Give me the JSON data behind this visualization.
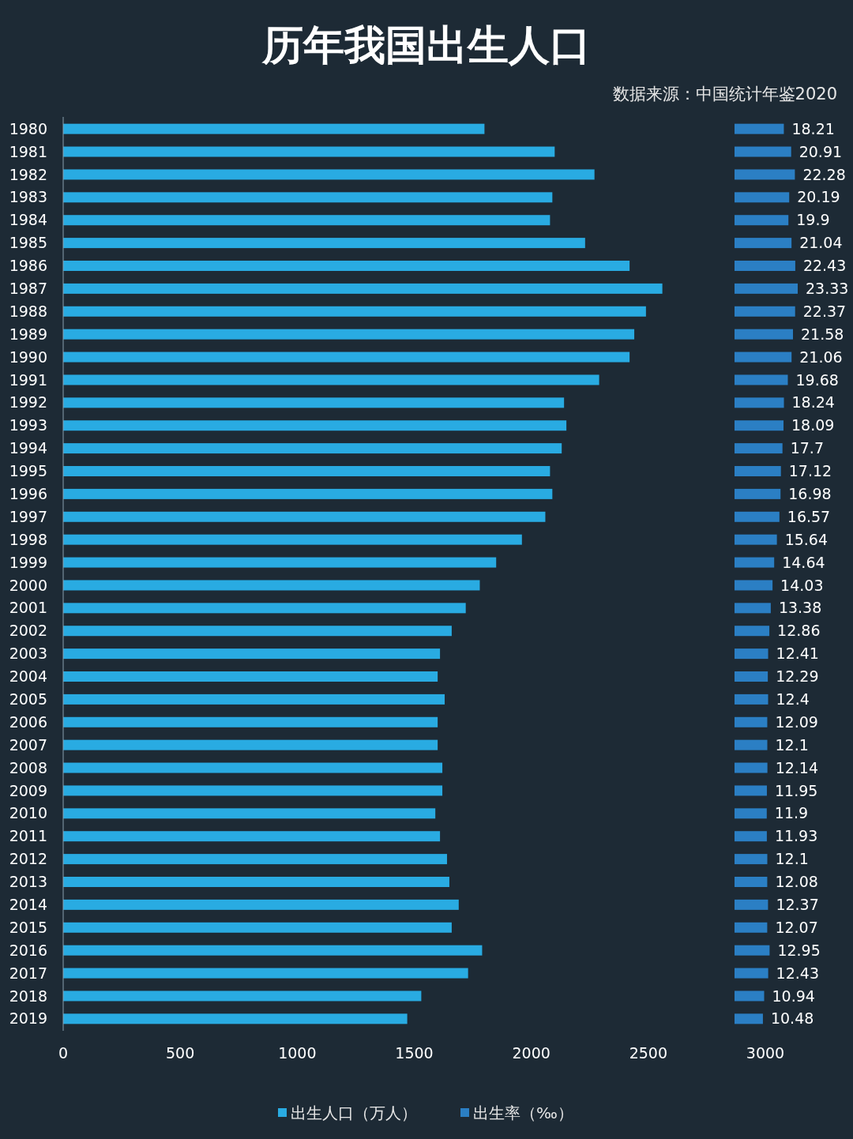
{
  "chart_data": [
    {
      "type": "bar",
      "orientation": "horizontal",
      "title": "历年我国出生人口",
      "annotations": [
        "数据来源：中国统计年鉴2020"
      ],
      "legend": "bottom",
      "grid": false,
      "categories": [
        "1980",
        "1981",
        "1982",
        "1983",
        "1984",
        "1985",
        "1986",
        "1987",
        "1988",
        "1989",
        "1990",
        "1991",
        "1992",
        "1993",
        "1994",
        "1995",
        "1996",
        "1997",
        "1998",
        "1999",
        "2000",
        "2001",
        "2002",
        "2003",
        "2004",
        "2005",
        "2006",
        "2007",
        "2008",
        "2009",
        "2010",
        "2011",
        "2012",
        "2013",
        "2014",
        "2015",
        "2016",
        "2017",
        "2018",
        "2019"
      ],
      "series": [
        {
          "name": "出生人口（万人）",
          "color": "#29abe2",
          "values": [
            1800,
            2100,
            2270,
            2090,
            2080,
            2230,
            2420,
            2560,
            2490,
            2440,
            2420,
            2290,
            2140,
            2150,
            2130,
            2080,
            2090,
            2060,
            1960,
            1850,
            1780,
            1720,
            1660,
            1610,
            1600,
            1630,
            1600,
            1600,
            1620,
            1620,
            1590,
            1610,
            1640,
            1650,
            1690,
            1660,
            1790,
            1730,
            1530,
            1470
          ]
        }
      ],
      "xlim": [
        0,
        3000
      ],
      "xticks": [
        0,
        500,
        1000,
        1500,
        2000,
        2500,
        3000
      ]
    },
    {
      "type": "bar",
      "orientation": "horizontal",
      "legend": "bottom",
      "data_labels": true,
      "categories": [
        null,
        null,
        null,
        null,
        null,
        null,
        null,
        null,
        null,
        null,
        null,
        null,
        null,
        null,
        null,
        null,
        null,
        null,
        null,
        null,
        null,
        null,
        null,
        null,
        null,
        null,
        null,
        null,
        null,
        null,
        null,
        null,
        null,
        null,
        null,
        null,
        null,
        null,
        null,
        null
      ],
      "series": [
        {
          "name": "出生率（‰）",
          "color": "#2b7fc4",
          "values": [
            18.21,
            20.91,
            22.28,
            20.19,
            19.9,
            21.04,
            22.43,
            23.33,
            22.37,
            21.58,
            21.06,
            19.68,
            18.24,
            18.09,
            17.7,
            17.12,
            16.98,
            16.57,
            15.64,
            14.64,
            14.03,
            13.38,
            12.86,
            12.41,
            12.29,
            12.4,
            12.09,
            12.1,
            12.14,
            11.95,
            11.9,
            11.93,
            12.1,
            12.08,
            12.37,
            12.07,
            12.95,
            12.43,
            10.94,
            10.48
          ]
        }
      ]
    }
  ]
}
